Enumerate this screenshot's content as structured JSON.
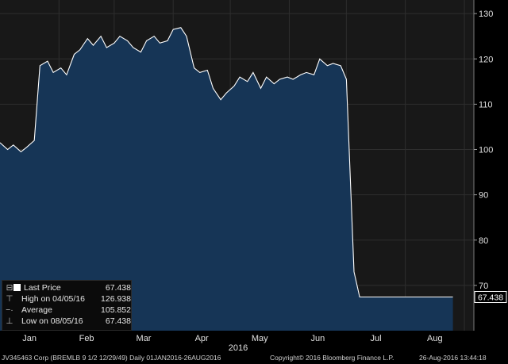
{
  "chart_data": {
    "type": "area",
    "title": "",
    "xlabel": "2016",
    "ylabel": "",
    "x_ticks": [
      "Jan",
      "Feb",
      "Mar",
      "Apr",
      "May",
      "Jun",
      "Jul",
      "Aug"
    ],
    "y_ticks": [
      70,
      80,
      90,
      100,
      110,
      120,
      130
    ],
    "ylim": [
      60,
      133
    ],
    "grid": true,
    "legend_position": "bottom-left",
    "colors": {
      "background": "#181818",
      "fill": "#163556",
      "line": "#ffffff",
      "grid": "#2e2e2e",
      "last_label": "#ffffff"
    },
    "series": [
      {
        "name": "Last Price",
        "x": [
          "2016-01-01",
          "2016-01-05",
          "2016-01-08",
          "2016-01-12",
          "2016-01-15",
          "2016-01-19",
          "2016-01-22",
          "2016-01-26",
          "2016-01-29",
          "2016-02-02",
          "2016-02-05",
          "2016-02-09",
          "2016-02-12",
          "2016-02-16",
          "2016-02-19",
          "2016-02-23",
          "2016-02-26",
          "2016-03-01",
          "2016-03-04",
          "2016-03-08",
          "2016-03-11",
          "2016-03-15",
          "2016-03-18",
          "2016-03-22",
          "2016-03-25",
          "2016-03-29",
          "2016-04-01",
          "2016-04-05",
          "2016-04-08",
          "2016-04-12",
          "2016-04-15",
          "2016-04-19",
          "2016-04-22",
          "2016-04-26",
          "2016-04-29",
          "2016-05-03",
          "2016-05-06",
          "2016-05-10",
          "2016-05-13",
          "2016-05-17",
          "2016-05-20",
          "2016-05-24",
          "2016-05-27",
          "2016-05-31",
          "2016-06-03",
          "2016-06-07",
          "2016-06-10",
          "2016-06-14",
          "2016-06-17",
          "2016-06-21",
          "2016-06-24",
          "2016-06-28",
          "2016-07-01",
          "2016-07-05",
          "2016-07-08",
          "2016-07-15",
          "2016-07-22",
          "2016-07-29",
          "2016-08-05",
          "2016-08-12",
          "2016-08-19",
          "2016-08-26"
        ],
        "values": [
          101.5,
          100.0,
          101.0,
          99.5,
          100.5,
          102.0,
          118.5,
          119.5,
          117.0,
          118.0,
          116.5,
          121.0,
          122.0,
          124.5,
          123.0,
          125.0,
          122.5,
          123.5,
          125.0,
          124.0,
          122.5,
          121.5,
          124.0,
          125.0,
          123.5,
          124.0,
          126.5,
          126.9,
          125.0,
          118.0,
          117.0,
          117.5,
          113.5,
          111.0,
          112.5,
          114.0,
          116.0,
          115.0,
          117.0,
          113.5,
          116.0,
          114.5,
          115.5,
          116.0,
          115.5,
          116.5,
          117.0,
          116.5,
          120.0,
          118.5,
          119.0,
          118.5,
          115.5,
          73.0,
          67.438,
          67.438,
          67.438,
          67.438,
          67.438,
          67.438,
          67.438,
          67.438
        ]
      }
    ],
    "last_value_label": "67.438"
  },
  "legend": [
    {
      "label": "Last Price",
      "value": "67.438"
    },
    {
      "label": "High on 04/05/16",
      "value": "126.938"
    },
    {
      "label": "Average",
      "value": "105.852"
    },
    {
      "label": "Low on 08/05/16",
      "value": "67.438"
    }
  ],
  "footer": {
    "security": "JV345463 Corp (BREMLB 9 1/2 12/29/49)  Daily 01JAN2016-26AUG2016",
    "copyright": "Copyright© 2016 Bloomberg Finance L.P.",
    "timestamp": "26-Aug-2016 13:44:18"
  }
}
